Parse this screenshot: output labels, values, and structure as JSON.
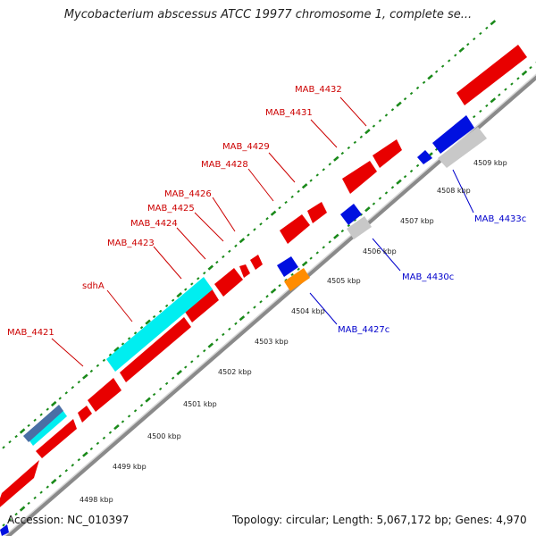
{
  "title": "Mycobacterium abscessus ATCC 19977 chromosome 1, complete se...",
  "footer": {
    "accession": "Accession: NC_010397",
    "summary": "Topology: circular; Length: 5,067,172 bp; Genes: 4,970"
  },
  "colors": {
    "plus_gene": "#ff0000",
    "minus_gene": "#0000ee",
    "grey_gene": "#c0c0c0",
    "cyan_gene": "#00ffff",
    "orange_gene": "#ff8c00",
    "steel_gene": "#4a6fa5",
    "backbone": "#808080",
    "tick_dots": "#1a8a1a",
    "plus_label": "#cc0000",
    "minus_label": "#0000cc"
  },
  "scale_labels": [
    "4498 kbp",
    "4499 kbp",
    "4500 kbp",
    "4501 kbp",
    "4502 kbp",
    "4503 kbp",
    "4504 kbp",
    "4505 kbp",
    "4506 kbp",
    "4507 kbp",
    "4508 kbp",
    "4509 kbp"
  ],
  "gene_labels_plus": [
    "MAB_4421",
    "sdhA",
    "MAB_4423",
    "MAB_4424",
    "MAB_4425",
    "MAB_4426",
    "MAB_4428",
    "MAB_4429",
    "MAB_4431",
    "MAB_4432"
  ],
  "gene_labels_minus": [
    "MAB_4427c",
    "MAB_4430c",
    "MAB_4433c"
  ]
}
